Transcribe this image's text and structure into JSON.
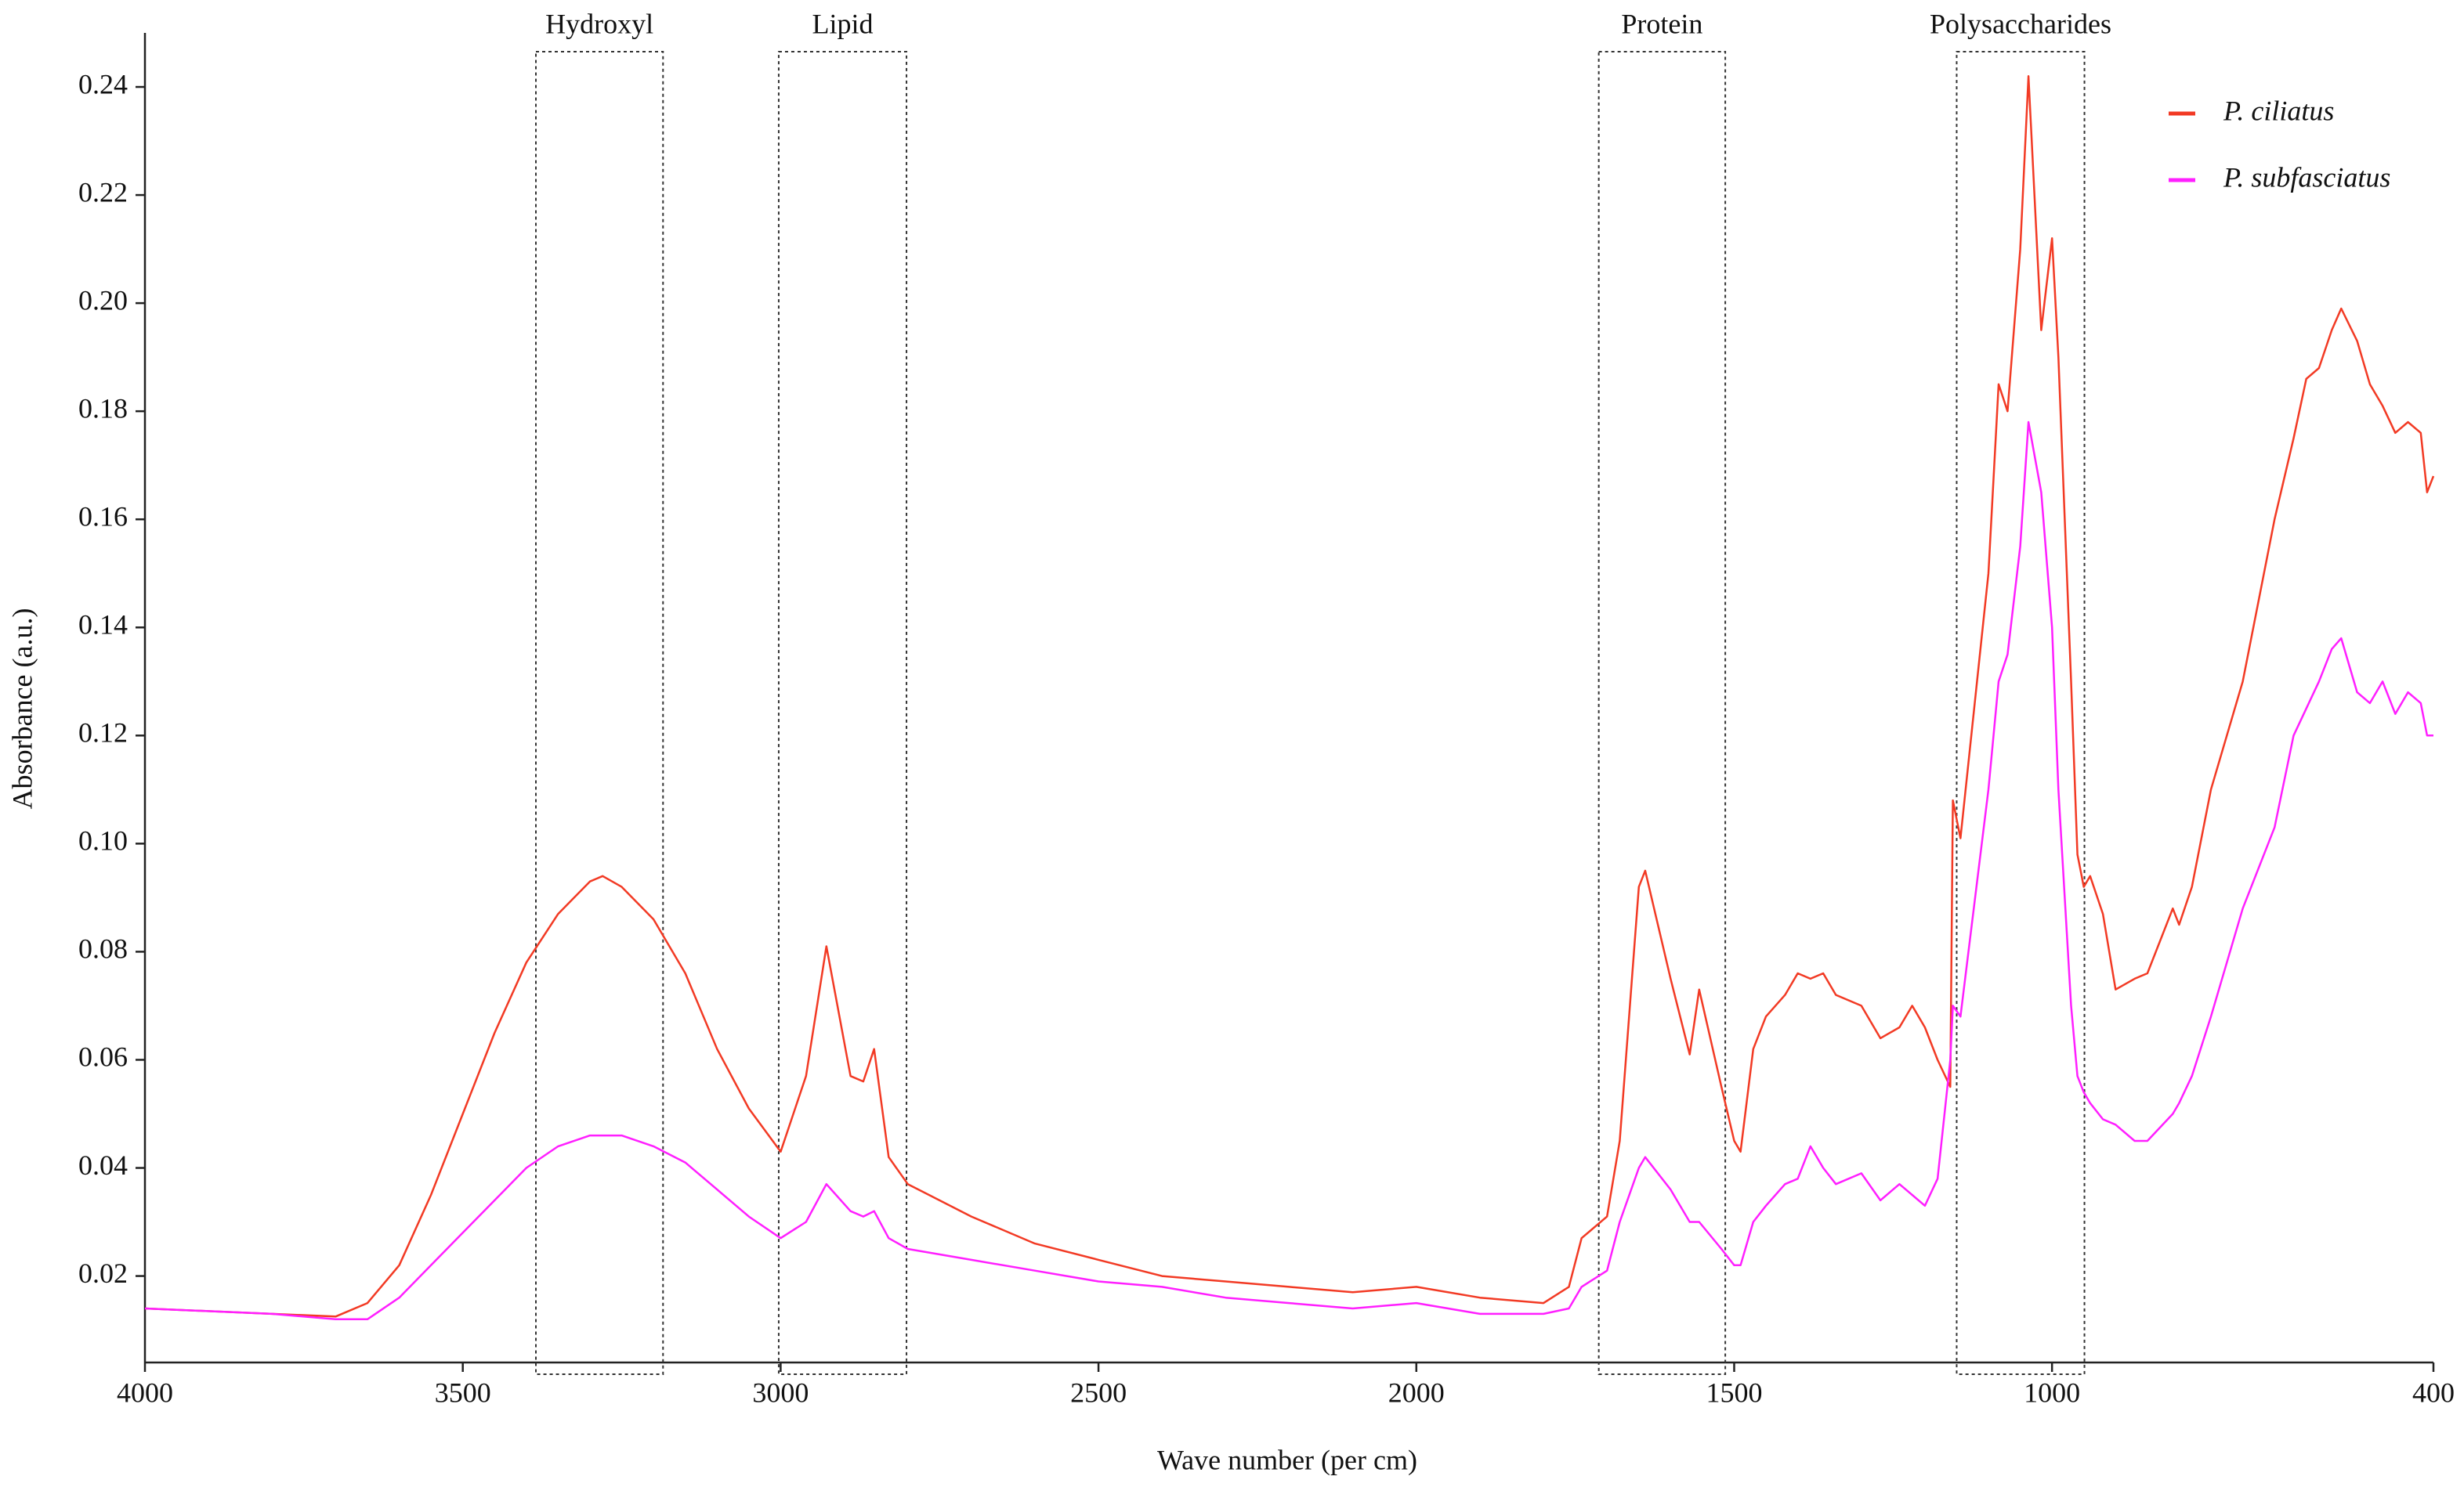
{
  "chart_data": {
    "type": "line",
    "xlabel": "Wave number (per cm)",
    "ylabel": "Absorbance (a.u.)",
    "x": [
      4000,
      3800,
      3700,
      3650,
      3600,
      3550,
      3500,
      3450,
      3400,
      3350,
      3300,
      3280,
      3250,
      3200,
      3150,
      3100,
      3050,
      3000,
      2960,
      2928,
      2890,
      2870,
      2853,
      2830,
      2800,
      2700,
      2600,
      2500,
      2400,
      2300,
      2200,
      2100,
      2000,
      1900,
      1800,
      1760,
      1740,
      1700,
      1680,
      1650,
      1640,
      1600,
      1570,
      1555,
      1520,
      1500,
      1490,
      1470,
      1450,
      1420,
      1400,
      1380,
      1360,
      1340,
      1300,
      1270,
      1240,
      1220,
      1200,
      1180,
      1160,
      1156,
      1144,
      1100,
      1084,
      1070,
      1050,
      1037,
      1017,
      1000,
      990,
      970,
      960,
      950,
      940,
      920,
      900,
      870,
      850,
      810,
      800,
      780,
      750,
      700,
      650,
      620,
      600,
      580,
      560,
      545,
      520,
      500,
      480,
      460,
      440,
      420,
      410,
      400
    ],
    "series": [
      {
        "name": "P. ciliatus",
        "color": "#f23a24",
        "values": [
          0.014,
          0.013,
          0.0125,
          0.015,
          0.022,
          0.035,
          0.05,
          0.065,
          0.078,
          0.087,
          0.093,
          0.094,
          0.092,
          0.086,
          0.076,
          0.062,
          0.051,
          0.043,
          0.057,
          0.081,
          0.057,
          0.056,
          0.062,
          0.042,
          0.037,
          0.031,
          0.026,
          0.023,
          0.02,
          0.019,
          0.018,
          0.017,
          0.018,
          0.016,
          0.015,
          0.018,
          0.027,
          0.031,
          0.045,
          0.092,
          0.095,
          0.075,
          0.061,
          0.073,
          0.055,
          0.045,
          0.043,
          0.062,
          0.068,
          0.072,
          0.076,
          0.075,
          0.076,
          0.072,
          0.07,
          0.064,
          0.066,
          0.07,
          0.066,
          0.06,
          0.055,
          0.108,
          0.101,
          0.15,
          0.185,
          0.18,
          0.21,
          0.242,
          0.195,
          0.212,
          0.19,
          0.13,
          0.098,
          0.092,
          0.094,
          0.087,
          0.073,
          0.075,
          0.076,
          0.088,
          0.085,
          0.092,
          0.11,
          0.13,
          0.16,
          0.175,
          0.186,
          0.188,
          0.195,
          0.199,
          0.193,
          0.185,
          0.181,
          0.176,
          0.178,
          0.176,
          0.165,
          0.168
        ]
      },
      {
        "name": "P. subfasciatus",
        "color": "#ff1fff",
        "values": [
          0.014,
          0.013,
          0.012,
          0.012,
          0.016,
          0.022,
          0.028,
          0.034,
          0.04,
          0.044,
          0.046,
          0.046,
          0.046,
          0.044,
          0.041,
          0.036,
          0.031,
          0.027,
          0.03,
          0.037,
          0.032,
          0.031,
          0.032,
          0.027,
          0.025,
          0.023,
          0.021,
          0.019,
          0.018,
          0.016,
          0.015,
          0.014,
          0.015,
          0.013,
          0.013,
          0.014,
          0.018,
          0.021,
          0.03,
          0.04,
          0.042,
          0.036,
          0.03,
          0.03,
          0.025,
          0.022,
          0.022,
          0.03,
          0.033,
          0.037,
          0.038,
          0.044,
          0.04,
          0.037,
          0.039,
          0.034,
          0.037,
          0.035,
          0.033,
          0.038,
          0.06,
          0.07,
          0.068,
          0.11,
          0.13,
          0.135,
          0.155,
          0.178,
          0.165,
          0.14,
          0.11,
          0.07,
          0.057,
          0.054,
          0.052,
          0.049,
          0.048,
          0.045,
          0.045,
          0.05,
          0.052,
          0.057,
          0.068,
          0.088,
          0.103,
          0.12,
          0.125,
          0.13,
          0.136,
          0.138,
          0.128,
          0.126,
          0.13,
          0.124,
          0.128,
          0.126,
          0.12,
          0.12
        ]
      }
    ],
    "regions": [
      {
        "label": "Hydroxyl",
        "range": [
          3385,
          3185
        ]
      },
      {
        "label": "Lipid",
        "range": [
          3003,
          2802
        ]
      },
      {
        "label": "Protein",
        "range": [
          1713,
          1514
        ]
      },
      {
        "label": "Polysaccharides",
        "range": [
          1150,
          949
        ]
      }
    ],
    "xlim": [
      4000,
      400
    ],
    "xticks": [
      4000,
      3500,
      3000,
      2500,
      2000,
      1500,
      1000,
      400
    ],
    "ylim": [
      0.004,
      0.25
    ],
    "yticks": [
      0.02,
      0.04,
      0.06,
      0.08,
      {
        "value": 0.1,
        "label": "0.10"
      },
      0.12,
      0.14,
      0.16,
      0.18,
      {
        "value": 0.2,
        "label": "0.20"
      },
      0.22,
      0.24
    ],
    "grid": false,
    "legend": "upper right"
  }
}
